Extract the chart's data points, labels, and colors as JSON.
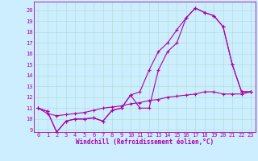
{
  "xlabel": "Windchill (Refroidissement éolien,°C)",
  "bg_color": "#cceeff",
  "line_color": "#aa00aa",
  "grid_color": "#aaddcc",
  "spine_color": "#aa00aa",
  "ylim": [
    8.8,
    20.8
  ],
  "xlim": [
    -0.5,
    23.5
  ],
  "yticks": [
    9,
    10,
    11,
    12,
    13,
    14,
    15,
    16,
    17,
    18,
    19,
    20
  ],
  "xticks": [
    0,
    1,
    2,
    3,
    4,
    5,
    6,
    7,
    8,
    9,
    10,
    11,
    12,
    13,
    14,
    15,
    16,
    17,
    18,
    19,
    20,
    21,
    22,
    23
  ],
  "tick_fontsize": 5.0,
  "xlabel_fontsize": 5.5,
  "line1_x": [
    0,
    1,
    2,
    3,
    4,
    5,
    6,
    7,
    8,
    9,
    10,
    11,
    12,
    13,
    14,
    15,
    16,
    17,
    18,
    19,
    20,
    21,
    22,
    23
  ],
  "line1_y": [
    11.0,
    10.7,
    8.8,
    9.8,
    10.0,
    10.0,
    10.1,
    9.8,
    10.8,
    11.0,
    12.2,
    12.5,
    14.5,
    16.2,
    17.0,
    18.2,
    19.3,
    20.2,
    19.8,
    19.5,
    18.5,
    15.0,
    12.5,
    12.5
  ],
  "line2_x": [
    0,
    1,
    2,
    3,
    4,
    5,
    6,
    7,
    8,
    9,
    10,
    11,
    12,
    13,
    14,
    15,
    16,
    17,
    18,
    19,
    20,
    21,
    22,
    23
  ],
  "line2_y": [
    11.0,
    10.7,
    8.8,
    9.8,
    10.0,
    10.0,
    10.1,
    9.8,
    10.8,
    11.0,
    12.2,
    11.0,
    11.0,
    14.5,
    16.2,
    17.0,
    19.3,
    20.2,
    19.8,
    19.5,
    18.5,
    15.0,
    12.5,
    12.5
  ],
  "line3_x": [
    0,
    1,
    2,
    3,
    4,
    5,
    6,
    7,
    8,
    9,
    10,
    11,
    12,
    13,
    14,
    15,
    16,
    17,
    18,
    19,
    20,
    21,
    22,
    23
  ],
  "line3_y": [
    11.0,
    10.5,
    10.3,
    10.4,
    10.5,
    10.6,
    10.8,
    11.0,
    11.1,
    11.2,
    11.4,
    11.5,
    11.7,
    11.8,
    12.0,
    12.1,
    12.2,
    12.3,
    12.5,
    12.5,
    12.3,
    12.3,
    12.3,
    12.5
  ]
}
